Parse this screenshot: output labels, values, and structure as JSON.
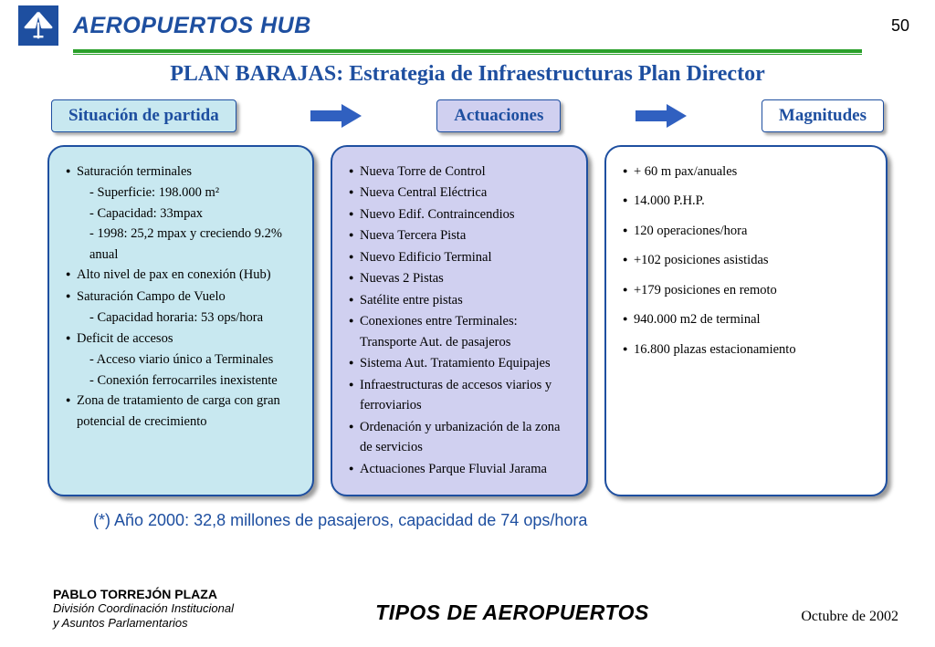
{
  "page_number": "50",
  "header_title": "AEROPUERTOS HUB",
  "main_title": "PLAN BARAJAS: Estrategia de Infraestructuras Plan Director",
  "tabs": {
    "t1": {
      "label": "Situación de partida",
      "bg": "#c8e8f0"
    },
    "t2": {
      "label": "Actuaciones",
      "bg": "#d0d0f0"
    },
    "t3": {
      "label": "Magnitudes",
      "bg": "#ffffff"
    }
  },
  "arrow_color": "#3060c0",
  "panels": {
    "p1": {
      "bg": "#c8e8f0",
      "items": [
        {
          "t": "Saturación terminales",
          "top": true
        },
        {
          "t": "- Superficie: 198.000 m²",
          "sub": true
        },
        {
          "t": "- Capacidad: 33mpax",
          "sub": true
        },
        {
          "t": "- 1998: 25,2 mpax y creciendo 9.2% anual",
          "sub": true
        },
        {
          "t": "Alto nivel de pax en conexión (Hub)",
          "top": true
        },
        {
          "t": "Saturación Campo de Vuelo",
          "top": true
        },
        {
          "t": "- Capacidad horaria: 53 ops/hora",
          "sub": true
        },
        {
          "t": "Deficit de accesos",
          "top": true
        },
        {
          "t": "- Acceso viario único a Terminales",
          "sub": true
        },
        {
          "t": "- Conexión ferrocarriles inexistente",
          "sub": true
        },
        {
          "t": "Zona de tratamiento de carga con gran potencial de crecimiento",
          "top": true
        }
      ]
    },
    "p2": {
      "bg": "#d0d0f0",
      "items": [
        {
          "t": "Nueva Torre de Control",
          "top": true
        },
        {
          "t": "Nueva Central Eléctrica",
          "top": true
        },
        {
          "t": "Nuevo Edif. Contraincendios",
          "top": true
        },
        {
          "t": "Nueva Tercera Pista",
          "top": true
        },
        {
          "t": "Nuevo Edificio Terminal",
          "top": true
        },
        {
          "t": "Nuevas 2 Pistas",
          "top": true
        },
        {
          "t": "Satélite entre pistas",
          "top": true
        },
        {
          "t": "Conexiones entre Terminales: Transporte Aut. de pasajeros",
          "top": true
        },
        {
          "t": "Sistema Aut. Tratamiento Equipajes",
          "top": true
        },
        {
          "t": "Infraestructuras de accesos viarios y ferroviarios",
          "top": true
        },
        {
          "t": "Ordenación y urbanización de la zona de servicios",
          "top": true
        },
        {
          "t": "Actuaciones Parque Fluvial Jarama",
          "top": true
        }
      ]
    },
    "p3": {
      "bg": "#ffffff",
      "items": [
        {
          "t": "+ 60 m pax/anuales",
          "top": true
        },
        {
          "t": "14.000 P.H.P.",
          "top": true
        },
        {
          "t": "120 operaciones/hora",
          "top": true
        },
        {
          "t": "+102 posiciones asistidas",
          "top": true
        },
        {
          "t": "+179 posiciones en remoto",
          "top": true
        },
        {
          "t": "940.000 m2 de terminal",
          "top": true
        },
        {
          "t": "16.800 plazas estacionamiento",
          "top": true
        }
      ]
    }
  },
  "footnote": "(*) Año 2000: 32,8 millones de pasajeros, capacidad de 74 ops/hora",
  "footer": {
    "author_name": "PABLO TORREJÓN PLAZA",
    "author_div1": "División Coordinación Institucional",
    "author_div2": "y Asuntos Parlamentarios",
    "center": "TIPOS DE AEROPUERTOS",
    "date": "Octubre de 2002"
  },
  "colors": {
    "brand_blue": "#1e4fa0",
    "green": "#2aa02a"
  }
}
